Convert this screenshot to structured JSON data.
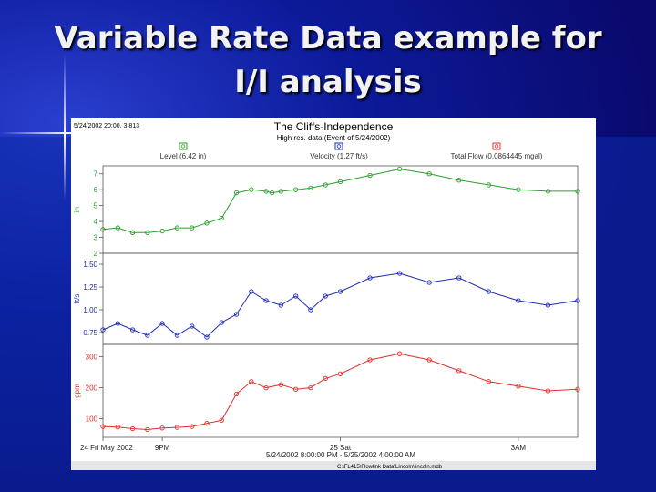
{
  "slide": {
    "title_line1": "Variable Rate Data example for",
    "title_line2": "I/I analysis"
  },
  "window": {
    "cursor_readout": "5/24/2002 20:00, 3.813",
    "status_path": "C:\\FL415\\Flowlink Data\\Lincoln\\lincoln.mdb"
  },
  "chart_data": {
    "type": "line",
    "title": "The Cliffs-Independence",
    "subtitle": "High res. data (Event of 5/24/2002)",
    "x_tick_labels": [
      "24 Fri May 2002",
      "9PM",
      "25 Sat",
      "3AM"
    ],
    "x_range_label": "5/24/2002 8:00:00 PM - 5/25/2002 4:00:00 AM",
    "x_ticks_hours": [
      20,
      21,
      24,
      27
    ],
    "xlim_hours": [
      20,
      28
    ],
    "legend_position": "top",
    "grid": false,
    "panels": [
      {
        "name": "Level (6.42 in)",
        "ylabel": "in",
        "color": "#2ca02c",
        "ylim": [
          2,
          7.5
        ],
        "yticks": [
          2,
          3,
          4,
          5,
          6,
          7
        ],
        "x_hours": [
          20.0,
          20.25,
          20.5,
          20.75,
          21.0,
          21.25,
          21.5,
          21.75,
          22.0,
          22.25,
          22.5,
          22.75,
          22.85,
          23.0,
          23.25,
          23.5,
          23.75,
          24.0,
          24.5,
          25.0,
          25.5,
          26.0,
          26.5,
          27.0,
          27.5,
          28.0
        ],
        "values": [
          3.5,
          3.6,
          3.3,
          3.3,
          3.4,
          3.6,
          3.6,
          3.9,
          4.2,
          5.8,
          6.0,
          5.9,
          5.8,
          5.9,
          6.0,
          6.1,
          6.3,
          6.5,
          6.9,
          7.3,
          7.0,
          6.6,
          6.3,
          6.0,
          5.9,
          5.9
        ]
      },
      {
        "name": "Velocity (1.27 ft/s)",
        "ylabel": "ft/s",
        "color": "#1f2bb4",
        "ylim": [
          0.62,
          1.62
        ],
        "yticks": [
          0.75,
          1.0,
          1.25,
          1.5
        ],
        "x_hours": [
          20.0,
          20.25,
          20.5,
          20.75,
          21.0,
          21.25,
          21.5,
          21.75,
          22.0,
          22.25,
          22.5,
          22.75,
          23.0,
          23.25,
          23.5,
          23.75,
          24.0,
          24.5,
          25.0,
          25.5,
          26.0,
          26.5,
          27.0,
          27.5,
          28.0
        ],
        "values": [
          0.78,
          0.85,
          0.78,
          0.72,
          0.85,
          0.72,
          0.82,
          0.7,
          0.86,
          0.95,
          1.2,
          1.1,
          1.05,
          1.15,
          1.0,
          1.15,
          1.2,
          1.35,
          1.4,
          1.3,
          1.35,
          1.2,
          1.1,
          1.05,
          1.1
        ]
      },
      {
        "name": "Total Flow (0.0864445 mgal)",
        "ylabel": "gpm",
        "color": "#e0302a",
        "ylim": [
          40,
          340
        ],
        "yticks": [
          100,
          200,
          300
        ],
        "x_hours": [
          20.0,
          20.25,
          20.5,
          20.75,
          21.0,
          21.25,
          21.5,
          21.75,
          22.0,
          22.25,
          22.5,
          22.75,
          23.0,
          23.25,
          23.5,
          23.75,
          24.0,
          24.5,
          25.0,
          25.5,
          26.0,
          26.5,
          27.0,
          27.5,
          28.0
        ],
        "values": [
          75,
          73,
          68,
          65,
          70,
          72,
          75,
          85,
          95,
          180,
          220,
          200,
          210,
          195,
          200,
          230,
          245,
          290,
          310,
          290,
          255,
          220,
          205,
          190,
          195
        ]
      }
    ]
  }
}
